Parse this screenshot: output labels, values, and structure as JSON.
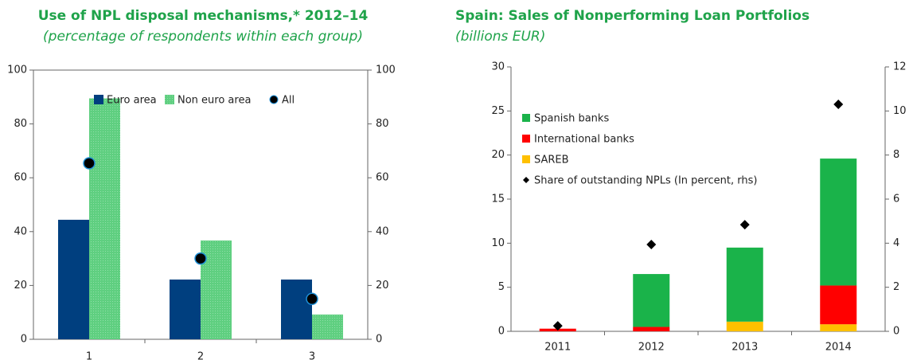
{
  "chart_data": [
    {
      "type": "bar",
      "title": "Use of NPL disposal mechanisms,* 2012–14",
      "subtitle": "(percentage of respondents within each group)",
      "categories": [
        "1",
        "2",
        "3"
      ],
      "series": [
        {
          "name": "Euro area",
          "color": "#003f7f",
          "values": [
            44.4,
            22.2,
            22.2
          ]
        },
        {
          "name": "Non euro area",
          "color": "#5fcf80",
          "values": [
            89.5,
            36.7,
            9.2
          ]
        },
        {
          "name": "All",
          "type": "scatter",
          "color": "#000000",
          "values": [
            65.4,
            30,
            15
          ]
        }
      ],
      "ylim": [
        0,
        100
      ],
      "yticks": [
        0,
        20,
        40,
        60,
        80,
        100
      ],
      "y2lim": [
        0,
        100
      ],
      "y2ticks": [
        0,
        20,
        40,
        60,
        80,
        100
      ]
    },
    {
      "type": "stacked_bar",
      "title": "Spain: Sales of Nonperforming Loan Portfolios",
      "subtitle": "(billions EUR)",
      "categories": [
        "2011",
        "2012",
        "2013",
        "2014"
      ],
      "series": [
        {
          "name": "Spanish banks",
          "color": "#1ab34a",
          "values": [
            0,
            6,
            8.4,
            14.4
          ]
        },
        {
          "name": "International banks",
          "color": "#ff0000",
          "values": [
            0.3,
            0.5,
            0,
            4.4
          ]
        },
        {
          "name": "SAREB",
          "color": "#ffc000",
          "values": [
            0,
            0,
            1.1,
            0.8
          ]
        },
        {
          "name": "Share of outstanding NPLs (In percent, rhs)",
          "type": "scatter",
          "axis": "y2",
          "color": "#000000",
          "values": [
            0.25,
            3.94,
            4.84,
            10.3
          ]
        }
      ],
      "stack_order": [
        2,
        1,
        0
      ],
      "ylim": [
        0,
        30
      ],
      "yticks": [
        0,
        5,
        10,
        15,
        20,
        25,
        30
      ],
      "y2lim": [
        0,
        12
      ],
      "y2ticks": [
        0,
        2,
        4,
        6,
        8,
        10,
        12
      ]
    }
  ]
}
